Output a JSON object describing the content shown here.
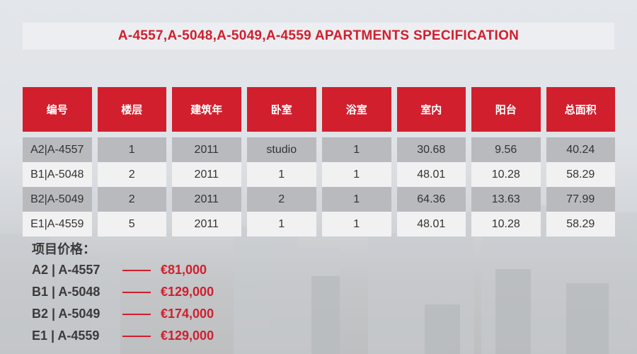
{
  "title": "A-4557,A-5048,A-5049,A-4559 APARTMENTS SPECIFICATION",
  "table": {
    "headers": [
      "编号",
      "楼层",
      "建筑年",
      "卧室",
      "浴室",
      "室内",
      "阳台",
      "总面积"
    ],
    "rows": [
      [
        "A2|A-4557",
        "1",
        "2011",
        "studio",
        "1",
        "30.68",
        "9.56",
        "40.24"
      ],
      [
        "B1|A-5048",
        "2",
        "2011",
        "1",
        "1",
        "48.01",
        "10.28",
        "58.29"
      ],
      [
        "B2|A-5049",
        "2",
        "2011",
        "2",
        "1",
        "64.36",
        "13.63",
        "77.99"
      ],
      [
        "E1|A-4559",
        "5",
        "2011",
        "1",
        "1",
        "48.01",
        "10.28",
        "58.29"
      ]
    ]
  },
  "prices": {
    "heading": "项目价格：",
    "items": [
      {
        "unit": "A2 | A-4557",
        "amount": "€81,000"
      },
      {
        "unit": "B1 | A-5048",
        "amount": "€129,000"
      },
      {
        "unit": "B2 | A-5049",
        "amount": "€174,000"
      },
      {
        "unit": "E1 | A-4559",
        "amount": "€129,000"
      }
    ]
  },
  "colors": {
    "accent": "#d01f2e",
    "row_shade": "#b9babd",
    "row_light": "#f1f1f2"
  }
}
